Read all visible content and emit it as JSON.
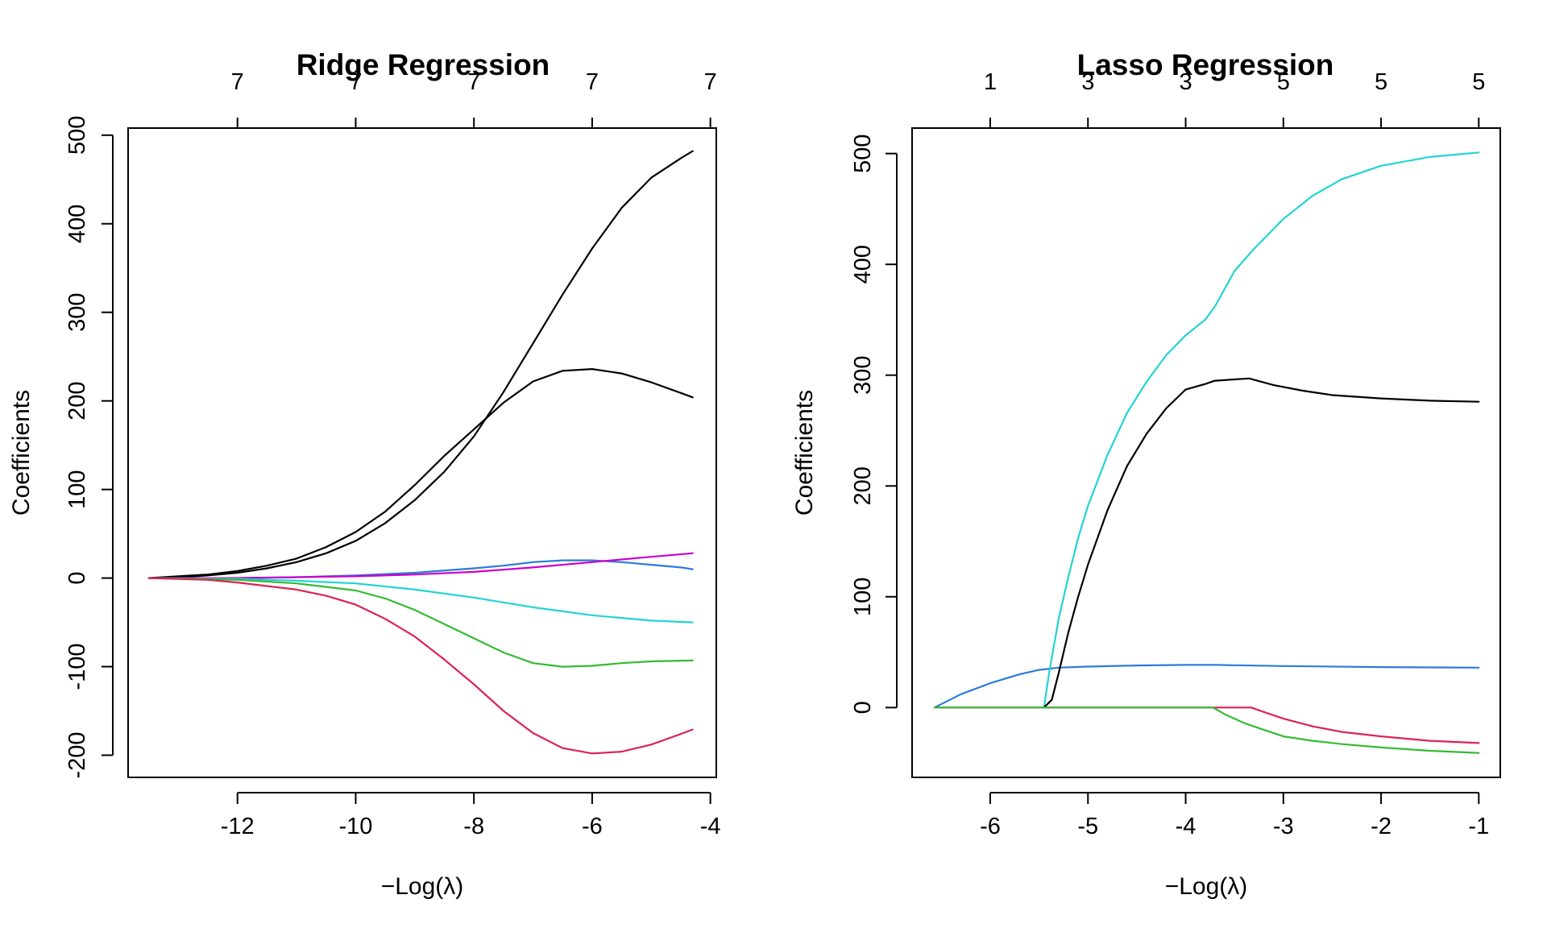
{
  "chart_data": [
    {
      "type": "line",
      "title": "Ridge Regression",
      "xlabel": "−Log(λ)",
      "ylabel": "Coefficients",
      "xlim": [
        -13.85,
        -3.9
      ],
      "ylim": [
        -225,
        508
      ],
      "x_ticks": [
        -12,
        -10,
        -8,
        -6,
        -4
      ],
      "x_tick_labels": [
        "-12",
        "-10",
        "-8",
        "-6",
        "-4"
      ],
      "y_ticks": [
        -200,
        -100,
        0,
        100,
        200,
        300,
        400,
        500
      ],
      "y_tick_labels": [
        "-200",
        "-100",
        "0",
        "100",
        "200",
        "300",
        "400",
        "500"
      ],
      "top_ticks": [
        -12,
        -10,
        -8,
        -6,
        -4
      ],
      "top_tick_labels": [
        "7",
        "7",
        "7",
        "7",
        "7"
      ],
      "grid": false,
      "series": [
        {
          "color": "#000000",
          "x": [
            -13.5,
            -13,
            -12.5,
            -12,
            -11.5,
            -11,
            -10.5,
            -10,
            -9.5,
            -9,
            -8.5,
            -8,
            -7.5,
            -7,
            -6.5,
            -6,
            -5.5,
            -5,
            -4.5,
            -4.3
          ],
          "y": [
            0,
            1,
            3,
            6,
            11,
            18,
            28,
            42,
            62,
            88,
            120,
            160,
            210,
            265,
            320,
            372,
            418,
            452,
            474,
            482
          ]
        },
        {
          "color": "#000000",
          "x": [
            -13.5,
            -13,
            -12.5,
            -12,
            -11.5,
            -11,
            -10.5,
            -10,
            -9.5,
            -9,
            -8.5,
            -8,
            -7.5,
            -7,
            -6.5,
            -6,
            -5.5,
            -5,
            -4.5,
            -4.3
          ],
          "y": [
            0,
            2,
            4,
            8,
            14,
            22,
            35,
            52,
            75,
            105,
            138,
            168,
            198,
            222,
            234,
            236,
            231,
            221,
            209,
            204
          ]
        },
        {
          "color": "#2B7BDB",
          "x": [
            -13.5,
            -12,
            -11,
            -10,
            -9,
            -8,
            -7.5,
            -7,
            -6.5,
            -6,
            -5.5,
            -5,
            -4.5,
            -4.3
          ],
          "y": [
            0,
            0,
            1,
            3,
            6,
            11,
            14,
            18,
            20,
            20,
            18,
            15,
            12,
            10
          ]
        },
        {
          "color": "#CC00CC",
          "x": [
            -13.5,
            -12,
            -11,
            -10,
            -9,
            -8,
            -7,
            -6,
            -5,
            -4.3
          ],
          "y": [
            0,
            0,
            1,
            2,
            4,
            7,
            12,
            18,
            24,
            28
          ]
        },
        {
          "color": "#22D3D3",
          "x": [
            -13.5,
            -12,
            -11,
            -10,
            -9,
            -8,
            -7,
            -6,
            -5,
            -4.3
          ],
          "y": [
            0,
            -1,
            -3,
            -6,
            -13,
            -22,
            -33,
            -42,
            -48,
            -50
          ]
        },
        {
          "color": "#33BB33",
          "x": [
            -13.5,
            -12,
            -11,
            -10,
            -9.5,
            -9,
            -8.5,
            -8,
            -7.5,
            -7,
            -6.5,
            -6,
            -5.5,
            -5,
            -4.3
          ],
          "y": [
            0,
            -2,
            -6,
            -14,
            -23,
            -36,
            -52,
            -68,
            -84,
            -96,
            -100,
            -99,
            -96,
            -94,
            -93
          ]
        },
        {
          "color": "#DD2255",
          "x": [
            -13.5,
            -12.5,
            -12,
            -11,
            -10.5,
            -10,
            -9.5,
            -9,
            -8.5,
            -8,
            -7.5,
            -7,
            -6.5,
            -6,
            -5.5,
            -5,
            -4.5,
            -4.3
          ],
          "y": [
            0,
            -2,
            -5,
            -13,
            -20,
            -30,
            -46,
            -66,
            -92,
            -120,
            -150,
            -175,
            -192,
            -198,
            -196,
            -188,
            -176,
            -171
          ]
        }
      ]
    },
    {
      "type": "line",
      "title": "Lasso Regression",
      "xlabel": "−Log(λ)",
      "ylabel": "Coefficients",
      "xlim": [
        -6.8,
        -0.78
      ],
      "ylim": [
        -63,
        523
      ],
      "x_ticks": [
        -6,
        -5,
        -4,
        -3,
        -2,
        -1
      ],
      "x_tick_labels": [
        "-6",
        "-5",
        "-4",
        "-3",
        "-2",
        "-1"
      ],
      "y_ticks": [
        0,
        100,
        200,
        300,
        400,
        500
      ],
      "y_tick_labels": [
        "0",
        "100",
        "200",
        "300",
        "400",
        "500"
      ],
      "top_ticks": [
        -6,
        -5,
        -4,
        -3,
        -2,
        -1
      ],
      "top_tick_labels": [
        "1",
        "3",
        "3",
        "5",
        "5",
        "5"
      ],
      "grid": false,
      "series": [
        {
          "color": "#2B7BDB",
          "x": [
            -6.57,
            -6.3,
            -6,
            -5.7,
            -5.5,
            -5.3,
            -5,
            -4.5,
            -4,
            -3.7,
            -3,
            -2,
            -1
          ],
          "y": [
            0,
            12,
            22,
            30,
            34,
            36,
            37,
            38,
            38.5,
            38.5,
            37.5,
            36.5,
            36
          ]
        },
        {
          "color": "#22D3D3",
          "x": [
            -5.45,
            -5.4,
            -5.3,
            -5.2,
            -5.1,
            -5,
            -4.8,
            -4.6,
            -4.4,
            -4.2,
            -4,
            -3.8,
            -3.7,
            -3.6,
            -3.5,
            -3.3,
            -3,
            -2.7,
            -2.4,
            -2,
            -1.5,
            -1
          ],
          "y": [
            0,
            30,
            80,
            118,
            153,
            182,
            228,
            266,
            294,
            318,
            336,
            350,
            362,
            378,
            394,
            414,
            441,
            462,
            477,
            489,
            497,
            501
          ]
        },
        {
          "color": "#000000",
          "x": [
            -5.45,
            -5.37,
            -5.3,
            -5.2,
            -5.1,
            -5,
            -4.8,
            -4.6,
            -4.4,
            -4.2,
            -4,
            -3.8,
            -3.7,
            -3.35,
            -3.1,
            -2.8,
            -2.5,
            -2,
            -1.5,
            -1
          ],
          "y": [
            0,
            7,
            31,
            68,
            100,
            129,
            178,
            218,
            247,
            270,
            287,
            292,
            295,
            297,
            291,
            286,
            282,
            279,
            277,
            276
          ]
        },
        {
          "color": "#DD2255",
          "x": [
            -6.57,
            -3.33,
            -3.2,
            -3,
            -2.7,
            -2.4,
            -2,
            -1.5,
            -1
          ],
          "y": [
            0,
            0,
            -4,
            -10,
            -17,
            -22,
            -26,
            -30,
            -32
          ]
        },
        {
          "color": "#33BB33",
          "x": [
            -6.57,
            -3.72,
            -3.6,
            -3.4,
            -3.2,
            -3,
            -2.7,
            -2.4,
            -2,
            -1.5,
            -1
          ],
          "y": [
            0,
            0,
            -6,
            -14,
            -20,
            -26,
            -30,
            -33,
            -36,
            -39,
            -41
          ]
        }
      ]
    }
  ]
}
